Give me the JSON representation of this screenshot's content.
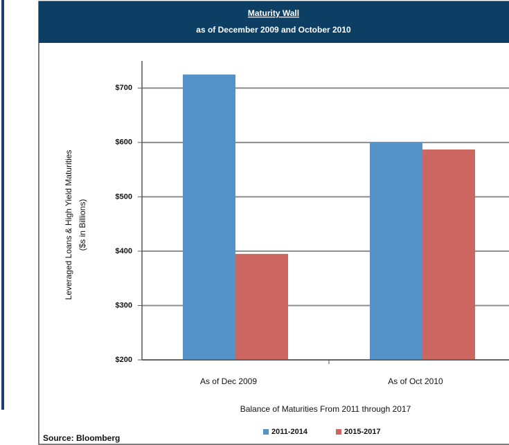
{
  "chart_data": {
    "type": "bar",
    "title": "Maturity Wall",
    "subtitle": "as of December 2009 and October 2010",
    "ylabel": [
      "Leveraged Loans & High Yield Maturities",
      "($s in Billions)"
    ],
    "xlabel": "Balance of Maturities From 2011 through 2017",
    "source": "Source: Bloomberg",
    "categories": [
      "As of Dec 2009",
      "As of Oct 2010"
    ],
    "series": [
      {
        "name": "2011-2014",
        "color": "#5592c8",
        "values": [
          725,
          600
        ]
      },
      {
        "name": "2015-2017",
        "color": "#cc6660",
        "values": [
          395,
          587
        ]
      }
    ],
    "ylim": [
      200,
      750
    ],
    "yticks": [
      {
        "value": 200,
        "label": "$200"
      },
      {
        "value": 300,
        "label": "$300"
      },
      {
        "value": 400,
        "label": "$400"
      },
      {
        "value": 500,
        "label": "$500"
      },
      {
        "value": 600,
        "label": "$600"
      },
      {
        "value": 700,
        "label": "$700"
      }
    ],
    "grid": true
  }
}
